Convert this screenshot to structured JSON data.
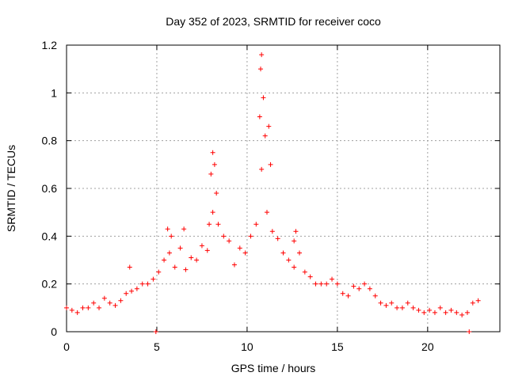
{
  "chart_data": {
    "type": "scatter",
    "title": "Day 352 of 2023, SRMTID for receiver coco",
    "xlabel": "GPS time / hours",
    "ylabel": "SRMTID / TECUs",
    "xlim": [
      0,
      24
    ],
    "ylim": [
      0,
      1.2
    ],
    "xticks": [
      "0",
      "5",
      "10",
      "15",
      "20"
    ],
    "yticks": [
      "0",
      "0.2",
      "0.4",
      "0.6",
      "0.8",
      "1",
      "1.2"
    ],
    "grid": true,
    "marker": "plus",
    "color": "#ff0000",
    "x": [
      0.0,
      0.3,
      0.6,
      0.9,
      1.2,
      1.5,
      1.8,
      2.1,
      2.4,
      2.7,
      3.0,
      3.3,
      3.6,
      3.9,
      4.2,
      4.5,
      4.8,
      5.1,
      5.4,
      5.7,
      6.0,
      6.3,
      6.6,
      6.9,
      7.2,
      7.5,
      7.8,
      8.1,
      8.4,
      8.7,
      9.0,
      9.3,
      9.6,
      9.9,
      10.2,
      10.5,
      10.8,
      11.1,
      11.4,
      11.7,
      12.0,
      12.3,
      12.6,
      12.9,
      13.2,
      13.5,
      13.8,
      14.1,
      14.4,
      14.7,
      15.0,
      15.3,
      15.6,
      15.9,
      16.2,
      16.5,
      16.8,
      17.1,
      17.4,
      17.7,
      18.0,
      18.3,
      18.6,
      18.9,
      19.2,
      19.5,
      19.8,
      20.1,
      20.4,
      20.7,
      21.0,
      21.3,
      21.6,
      21.9,
      22.2,
      22.5,
      22.8
    ],
    "y": [
      0.1,
      0.09,
      0.08,
      0.1,
      0.1,
      0.12,
      0.1,
      0.14,
      0.12,
      0.11,
      0.13,
      0.16,
      0.17,
      0.18,
      0.2,
      0.2,
      0.22,
      0.25,
      0.3,
      0.33,
      0.27,
      0.35,
      0.26,
      0.31,
      0.3,
      0.36,
      0.34,
      0.5,
      0.45,
      0.4,
      0.38,
      0.28,
      0.35,
      0.33,
      0.4,
      0.45,
      0.68,
      0.5,
      0.42,
      0.39,
      0.33,
      0.3,
      0.27,
      0.33,
      0.25,
      0.23,
      0.2,
      0.2,
      0.2,
      0.22,
      0.2,
      0.16,
      0.15,
      0.19,
      0.18,
      0.2,
      0.18,
      0.15,
      0.12,
      0.11,
      0.12,
      0.1,
      0.1,
      0.12,
      0.1,
      0.09,
      0.08,
      0.09,
      0.08,
      0.1,
      0.08,
      0.09,
      0.08,
      0.07,
      0.08,
      0.12,
      0.13
    ],
    "extra_points": {
      "x": [
        8.0,
        8.1,
        8.2,
        8.3,
        10.7,
        10.8,
        10.75,
        10.9,
        11.0,
        11.2,
        11.3,
        12.6,
        12.7,
        3.5,
        5.6,
        5.8,
        6.5,
        7.9,
        4.95,
        22.3
      ],
      "y": [
        0.66,
        0.75,
        0.7,
        0.58,
        0.9,
        1.16,
        1.1,
        0.98,
        0.82,
        0.86,
        0.7,
        0.38,
        0.42,
        0.27,
        0.43,
        0.4,
        0.43,
        0.45,
        0.0,
        0.0
      ]
    }
  }
}
